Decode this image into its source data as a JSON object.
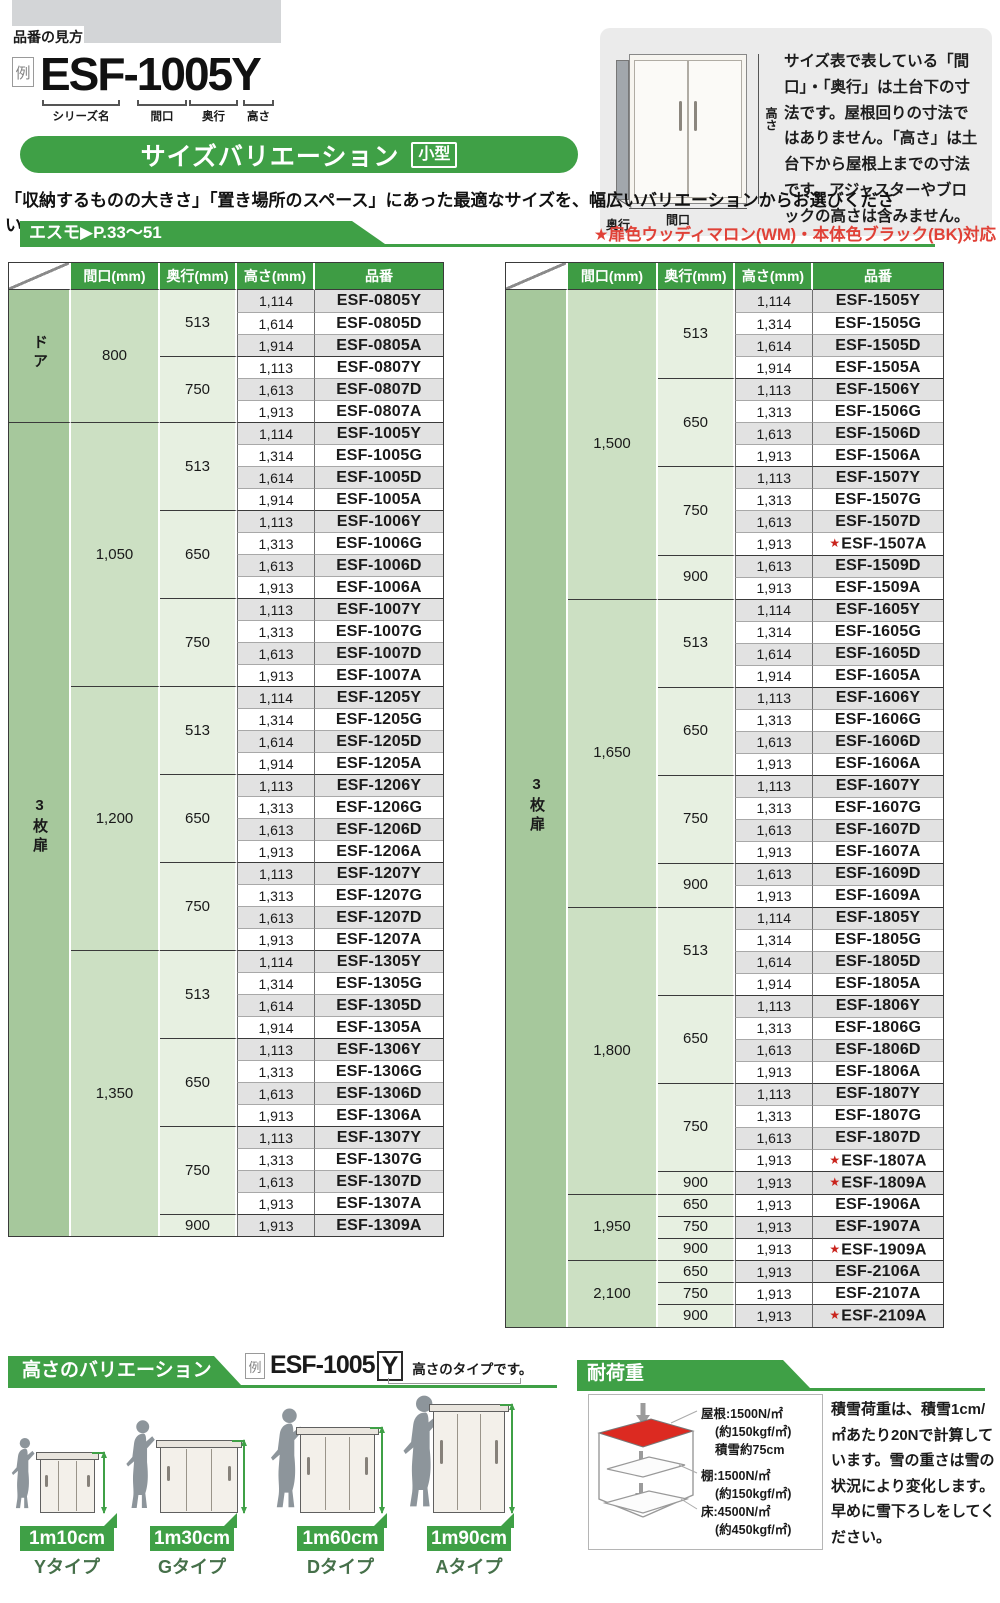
{
  "colors": {
    "green": "#3fa046",
    "header_green": "#3e9c44",
    "category_green": "#a6c89c",
    "maguchi_green": "#cce0c3",
    "okuyuki_green": "#e7f0e1",
    "row_gray": "#e2e2e2",
    "red_note": "#e04137",
    "star_red": "#c9231c",
    "roof_red": "#dc2a21",
    "type_label_green": "#46704a"
  },
  "top": {
    "section_label": "品番の見方",
    "example_badge": "例",
    "example_code": "ESF-1005Y",
    "part_labels": [
      "シリーズ名",
      "間口",
      "奥行",
      "高さ"
    ],
    "title": "サイズバリエーション",
    "title_badge": "小型",
    "info_box": {
      "text": "サイズ表で表している「間口」・「奥行」は土台下の寸法です。屋根回りの寸法ではありません。「高さ」は土台下から屋根上までの寸法です。アジャスターやブロックの高さは含みません。",
      "dim_height": "高さ",
      "dim_width": "間口",
      "dim_depth": "奥行"
    },
    "lead_text": "「収納するものの大きさ」「置き場所のスペース」にあった最適なサイズを、幅広いバリエーションからお選びください。",
    "series_tab": "エスモ▶P.33〜51",
    "compat_note": "★扉色ウッディマロン(WM)・本体色ブラック(BK)対応"
  },
  "tables": {
    "headers": [
      "間口(mm)",
      "奥行(mm)",
      "高さ(mm)",
      "品番"
    ],
    "star_mark": "★",
    "left": {
      "categories": [
        {
          "label": "ドア",
          "sections": [
            {
              "width": "800",
              "groups": [
                {
                  "depth": "513",
                  "rows": [
                    [
                      "1,114",
                      "ESF-0805Y"
                    ],
                    [
                      "1,614",
                      "ESF-0805D"
                    ],
                    [
                      "1,914",
                      "ESF-0805A"
                    ]
                  ]
                },
                {
                  "depth": "750",
                  "rows": [
                    [
                      "1,113",
                      "ESF-0807Y"
                    ],
                    [
                      "1,613",
                      "ESF-0807D"
                    ],
                    [
                      "1,913",
                      "ESF-0807A"
                    ]
                  ]
                }
              ]
            }
          ]
        },
        {
          "label": "3枚扉",
          "sections": [
            {
              "width": "1,050",
              "groups": [
                {
                  "depth": "513",
                  "rows": [
                    [
                      "1,114",
                      "ESF-1005Y"
                    ],
                    [
                      "1,314",
                      "ESF-1005G"
                    ],
                    [
                      "1,614",
                      "ESF-1005D"
                    ],
                    [
                      "1,914",
                      "ESF-1005A"
                    ]
                  ]
                },
                {
                  "depth": "650",
                  "rows": [
                    [
                      "1,113",
                      "ESF-1006Y"
                    ],
                    [
                      "1,313",
                      "ESF-1006G"
                    ],
                    [
                      "1,613",
                      "ESF-1006D"
                    ],
                    [
                      "1,913",
                      "ESF-1006A"
                    ]
                  ]
                },
                {
                  "depth": "750",
                  "rows": [
                    [
                      "1,113",
                      "ESF-1007Y"
                    ],
                    [
                      "1,313",
                      "ESF-1007G"
                    ],
                    [
                      "1,613",
                      "ESF-1007D"
                    ],
                    [
                      "1,913",
                      "ESF-1007A"
                    ]
                  ]
                }
              ]
            },
            {
              "width": "1,200",
              "groups": [
                {
                  "depth": "513",
                  "rows": [
                    [
                      "1,114",
                      "ESF-1205Y"
                    ],
                    [
                      "1,314",
                      "ESF-1205G"
                    ],
                    [
                      "1,614",
                      "ESF-1205D"
                    ],
                    [
                      "1,914",
                      "ESF-1205A"
                    ]
                  ]
                },
                {
                  "depth": "650",
                  "rows": [
                    [
                      "1,113",
                      "ESF-1206Y"
                    ],
                    [
                      "1,313",
                      "ESF-1206G"
                    ],
                    [
                      "1,613",
                      "ESF-1206D"
                    ],
                    [
                      "1,913",
                      "ESF-1206A"
                    ]
                  ]
                },
                {
                  "depth": "750",
                  "rows": [
                    [
                      "1,113",
                      "ESF-1207Y"
                    ],
                    [
                      "1,313",
                      "ESF-1207G"
                    ],
                    [
                      "1,613",
                      "ESF-1207D"
                    ],
                    [
                      "1,913",
                      "ESF-1207A"
                    ]
                  ]
                }
              ]
            },
            {
              "width": "1,350",
              "groups": [
                {
                  "depth": "513",
                  "rows": [
                    [
                      "1,114",
                      "ESF-1305Y"
                    ],
                    [
                      "1,314",
                      "ESF-1305G"
                    ],
                    [
                      "1,614",
                      "ESF-1305D"
                    ],
                    [
                      "1,914",
                      "ESF-1305A"
                    ]
                  ]
                },
                {
                  "depth": "650",
                  "rows": [
                    [
                      "1,113",
                      "ESF-1306Y"
                    ],
                    [
                      "1,313",
                      "ESF-1306G"
                    ],
                    [
                      "1,613",
                      "ESF-1306D"
                    ],
                    [
                      "1,913",
                      "ESF-1306A"
                    ]
                  ]
                },
                {
                  "depth": "750",
                  "rows": [
                    [
                      "1,113",
                      "ESF-1307Y"
                    ],
                    [
                      "1,313",
                      "ESF-1307G"
                    ],
                    [
                      "1,613",
                      "ESF-1307D"
                    ],
                    [
                      "1,913",
                      "ESF-1307A"
                    ]
                  ]
                },
                {
                  "depth": "900",
                  "rows": [
                    [
                      "1,913",
                      "ESF-1309A"
                    ]
                  ]
                }
              ]
            }
          ]
        }
      ]
    },
    "right": {
      "categories": [
        {
          "label": "3枚扉",
          "sections": [
            {
              "width": "1,500",
              "groups": [
                {
                  "depth": "513",
                  "rows": [
                    [
                      "1,114",
                      "ESF-1505Y"
                    ],
                    [
                      "1,314",
                      "ESF-1505G"
                    ],
                    [
                      "1,614",
                      "ESF-1505D"
                    ],
                    [
                      "1,914",
                      "ESF-1505A"
                    ]
                  ]
                },
                {
                  "depth": "650",
                  "rows": [
                    [
                      "1,113",
                      "ESF-1506Y"
                    ],
                    [
                      "1,313",
                      "ESF-1506G"
                    ],
                    [
                      "1,613",
                      "ESF-1506D"
                    ],
                    [
                      "1,913",
                      "ESF-1506A"
                    ]
                  ]
                },
                {
                  "depth": "750",
                  "rows": [
                    [
                      "1,113",
                      "ESF-1507Y"
                    ],
                    [
                      "1,313",
                      "ESF-1507G"
                    ],
                    [
                      "1,613",
                      "ESF-1507D"
                    ],
                    [
                      "1,913",
                      "ESF-1507A",
                      "star"
                    ]
                  ]
                },
                {
                  "depth": "900",
                  "rows": [
                    [
                      "1,613",
                      "ESF-1509D"
                    ],
                    [
                      "1,913",
                      "ESF-1509A"
                    ]
                  ]
                }
              ]
            },
            {
              "width": "1,650",
              "groups": [
                {
                  "depth": "513",
                  "rows": [
                    [
                      "1,114",
                      "ESF-1605Y"
                    ],
                    [
                      "1,314",
                      "ESF-1605G"
                    ],
                    [
                      "1,614",
                      "ESF-1605D"
                    ],
                    [
                      "1,914",
                      "ESF-1605A"
                    ]
                  ]
                },
                {
                  "depth": "650",
                  "rows": [
                    [
                      "1,113",
                      "ESF-1606Y"
                    ],
                    [
                      "1,313",
                      "ESF-1606G"
                    ],
                    [
                      "1,613",
                      "ESF-1606D"
                    ],
                    [
                      "1,913",
                      "ESF-1606A"
                    ]
                  ]
                },
                {
                  "depth": "750",
                  "rows": [
                    [
                      "1,113",
                      "ESF-1607Y"
                    ],
                    [
                      "1,313",
                      "ESF-1607G"
                    ],
                    [
                      "1,613",
                      "ESF-1607D"
                    ],
                    [
                      "1,913",
                      "ESF-1607A"
                    ]
                  ]
                },
                {
                  "depth": "900",
                  "rows": [
                    [
                      "1,613",
                      "ESF-1609D"
                    ],
                    [
                      "1,913",
                      "ESF-1609A"
                    ]
                  ]
                }
              ]
            },
            {
              "width": "1,800",
              "groups": [
                {
                  "depth": "513",
                  "rows": [
                    [
                      "1,114",
                      "ESF-1805Y"
                    ],
                    [
                      "1,314",
                      "ESF-1805G"
                    ],
                    [
                      "1,614",
                      "ESF-1805D"
                    ],
                    [
                      "1,914",
                      "ESF-1805A"
                    ]
                  ]
                },
                {
                  "depth": "650",
                  "rows": [
                    [
                      "1,113",
                      "ESF-1806Y"
                    ],
                    [
                      "1,313",
                      "ESF-1806G"
                    ],
                    [
                      "1,613",
                      "ESF-1806D"
                    ],
                    [
                      "1,913",
                      "ESF-1806A"
                    ]
                  ]
                },
                {
                  "depth": "750",
                  "rows": [
                    [
                      "1,113",
                      "ESF-1807Y"
                    ],
                    [
                      "1,313",
                      "ESF-1807G"
                    ],
                    [
                      "1,613",
                      "ESF-1807D"
                    ],
                    [
                      "1,913",
                      "ESF-1807A",
                      "star"
                    ]
                  ]
                },
                {
                  "depth": "900",
                  "rows": [
                    [
                      "1,913",
                      "ESF-1809A",
                      "star"
                    ]
                  ]
                }
              ]
            },
            {
              "width": "1,950",
              "groups": [
                {
                  "depth": "650",
                  "rows": [
                    [
                      "1,913",
                      "ESF-1906A"
                    ]
                  ]
                },
                {
                  "depth": "750",
                  "rows": [
                    [
                      "1,913",
                      "ESF-1907A"
                    ]
                  ]
                },
                {
                  "depth": "900",
                  "rows": [
                    [
                      "1,913",
                      "ESF-1909A",
                      "star"
                    ]
                  ]
                }
              ]
            },
            {
              "width": "2,100",
              "groups": [
                {
                  "depth": "650",
                  "rows": [
                    [
                      "1,913",
                      "ESF-2106A"
                    ]
                  ]
                },
                {
                  "depth": "750",
                  "rows": [
                    [
                      "1,913",
                      "ESF-2107A"
                    ]
                  ]
                },
                {
                  "depth": "900",
                  "rows": [
                    [
                      "1,913",
                      "ESF-2109A",
                      "star"
                    ]
                  ]
                }
              ]
            }
          ]
        }
      ]
    }
  },
  "height_variation": {
    "title": "高さのバリエーション",
    "example_badge": "例",
    "example_code_prefix": "ESF-1005",
    "example_code_suffix": "Y",
    "example_note": "高さのタイプです。",
    "types": [
      {
        "height": "1m10cm",
        "type": "Yタイプ"
      },
      {
        "height": "1m30cm",
        "type": "Gタイプ"
      },
      {
        "height": "1m60cm",
        "type": "Dタイプ"
      },
      {
        "height": "1m90cm",
        "type": "Aタイプ"
      }
    ]
  },
  "load_capacity": {
    "title": "耐荷重",
    "labels": [
      {
        "target": "屋根:1500N/㎡",
        "sub": "(約150kgf/㎡)",
        "extra": "積雪約75cm"
      },
      {
        "target": "棚:1500N/㎡",
        "sub": "(約150kgf/㎡)",
        "extra": ""
      },
      {
        "target": "床:4500N/㎡",
        "sub": "(約450kgf/㎡)",
        "extra": ""
      }
    ],
    "note": "積雪荷重は、積雪1cm/㎡あたり20Nで計算しています。雪の重さは雪の状況により変化します。早めに雪下ろしをしてください。"
  }
}
